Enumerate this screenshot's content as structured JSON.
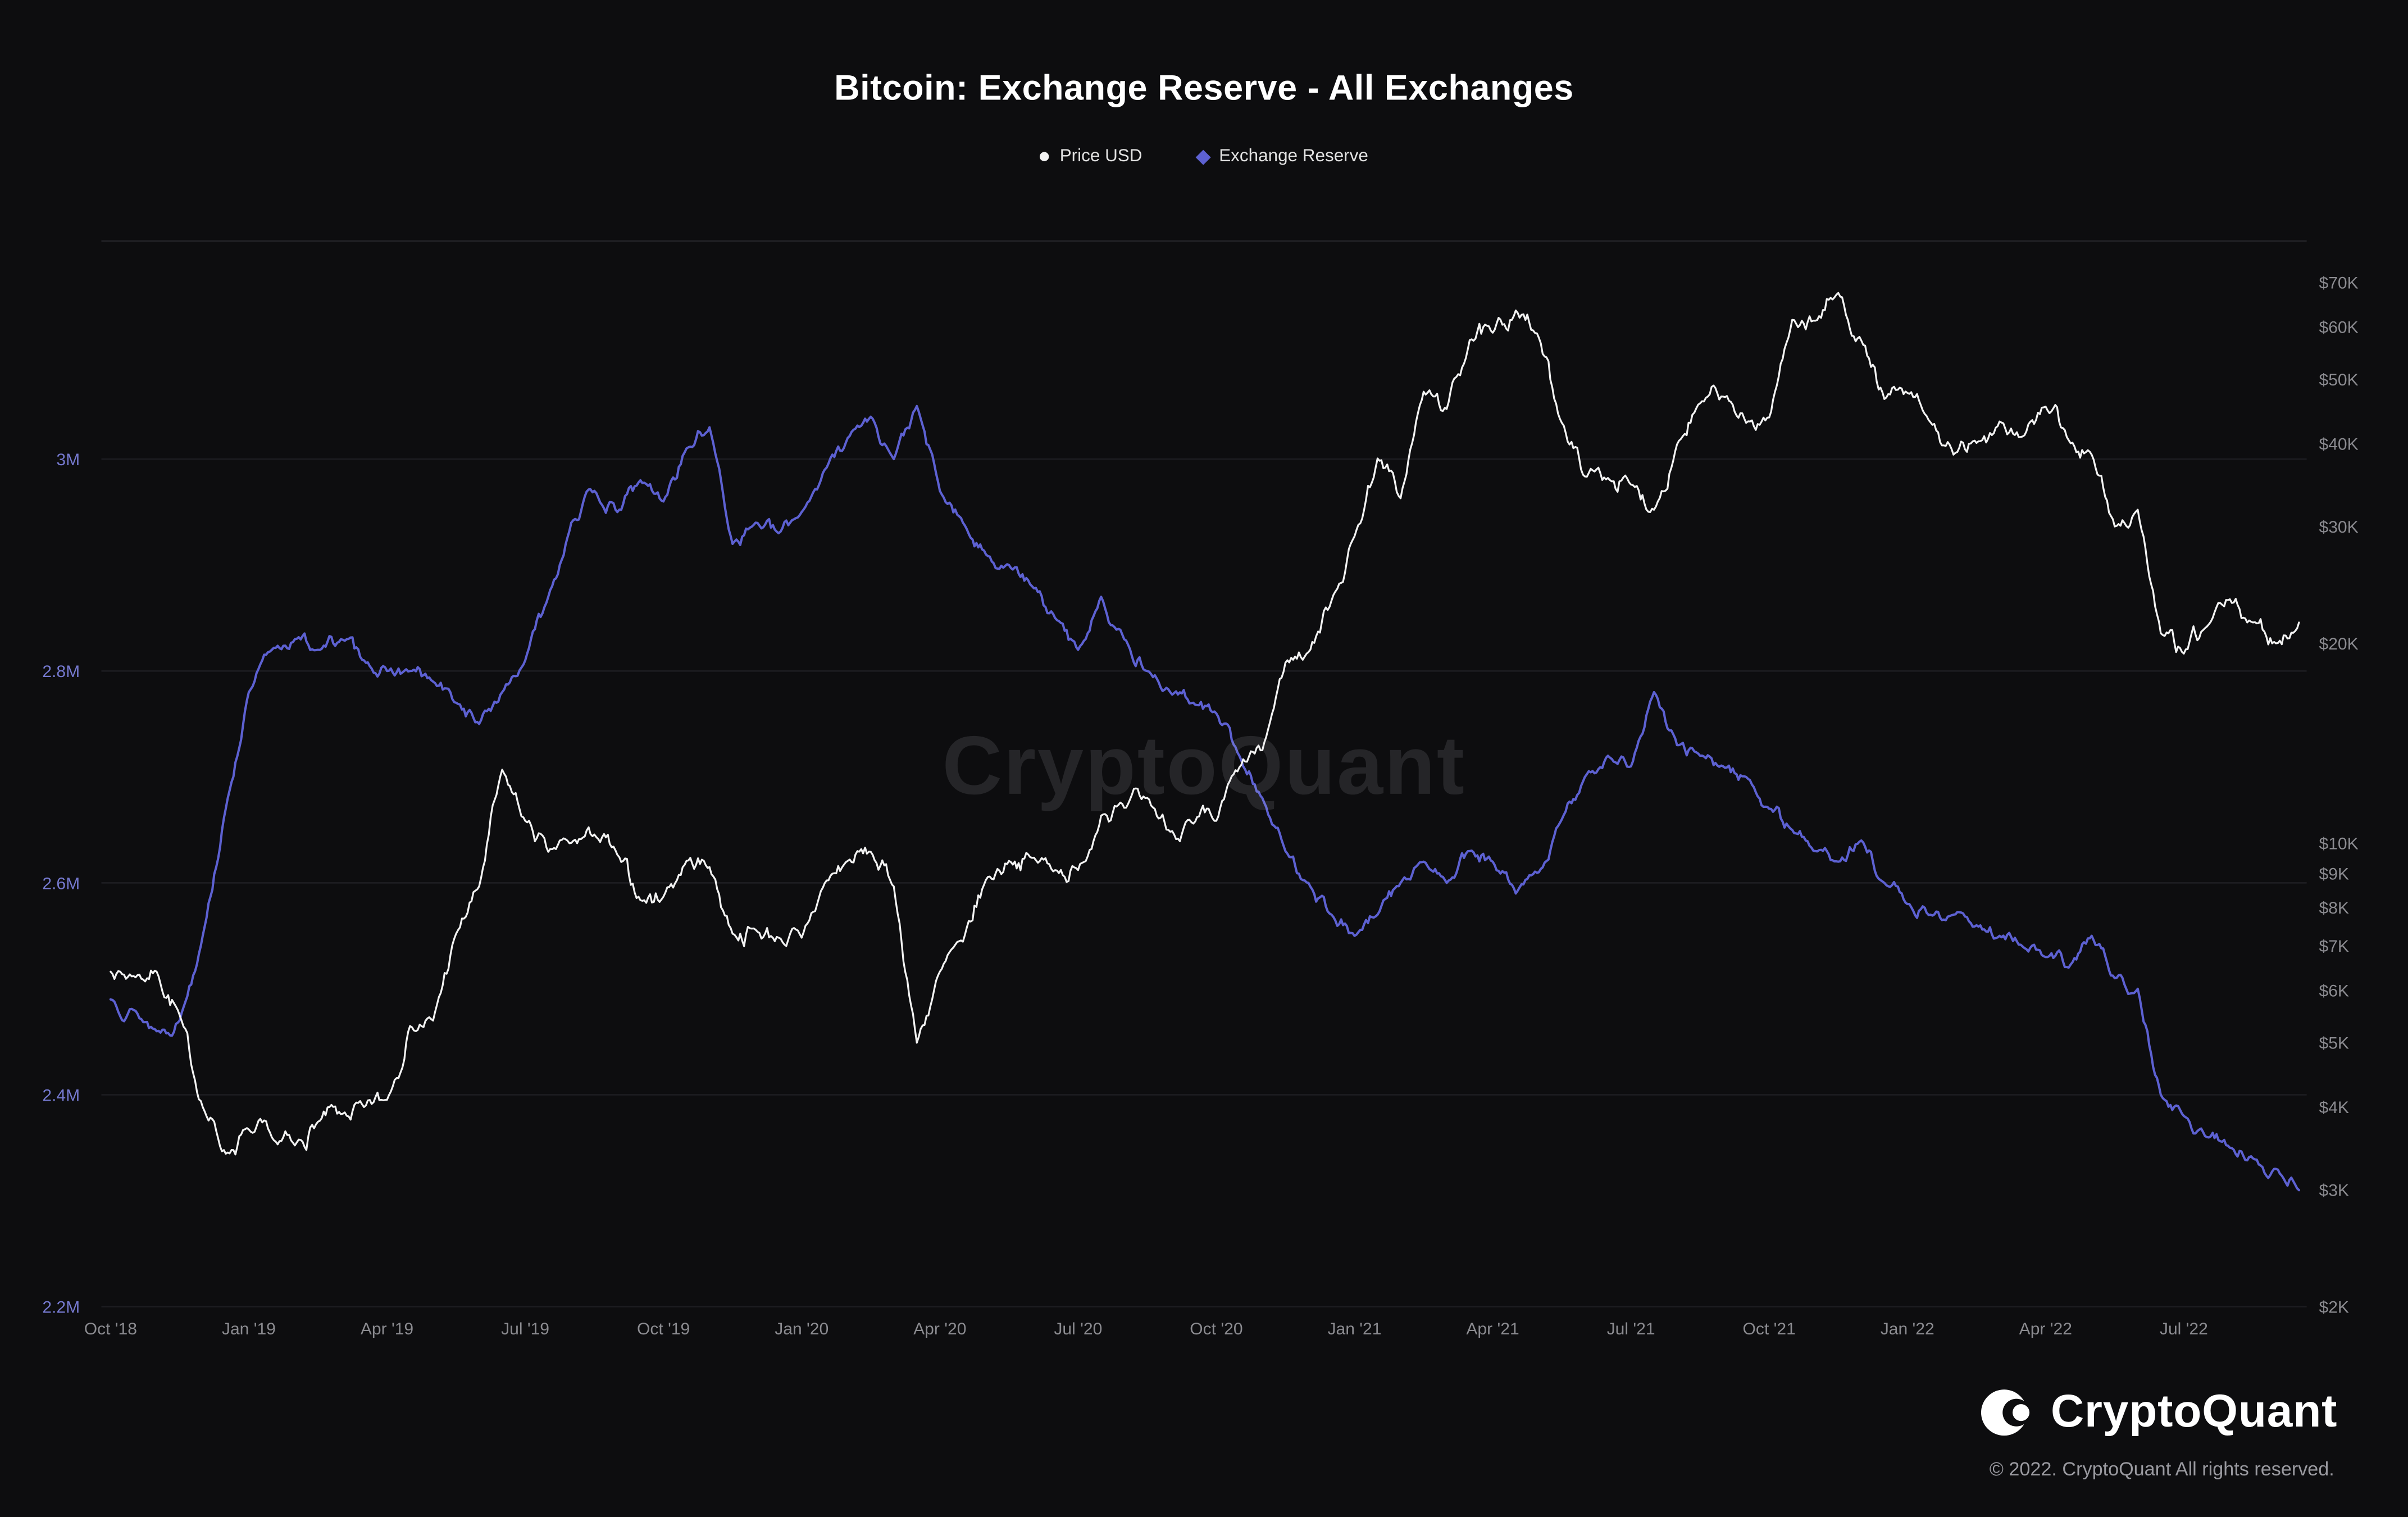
{
  "chart_data": {
    "type": "line",
    "title": "Bitcoin: Exchange Reserve - All Exchanges",
    "x_unit": "months since Oct 2018",
    "x": {
      "start": 0,
      "step": 0.5,
      "count": 96
    },
    "x_ticks": [
      {
        "label": "Oct '18",
        "m": 0
      },
      {
        "label": "Jan '19",
        "m": 3
      },
      {
        "label": "Apr '19",
        "m": 6
      },
      {
        "label": "Jul '19",
        "m": 9
      },
      {
        "label": "Oct '19",
        "m": 12
      },
      {
        "label": "Jan '20",
        "m": 15
      },
      {
        "label": "Apr '20",
        "m": 18
      },
      {
        "label": "Jul '20",
        "m": 21
      },
      {
        "label": "Oct '20",
        "m": 24
      },
      {
        "label": "Jan '21",
        "m": 27
      },
      {
        "label": "Apr '21",
        "m": 30
      },
      {
        "label": "Jul '21",
        "m": 33
      },
      {
        "label": "Oct '21",
        "m": 36
      },
      {
        "label": "Jan '22",
        "m": 39
      },
      {
        "label": "Apr '22",
        "m": 42
      },
      {
        "label": "Jul '22",
        "m": 45
      }
    ],
    "left_axis": {
      "name": "Exchange Reserve (BTC)",
      "scale": "linear",
      "range_millions": [
        2.2,
        3.08
      ],
      "ticks": [
        {
          "label": "3M",
          "value": 3.0
        },
        {
          "label": "2.8M",
          "value": 2.8
        },
        {
          "label": "2.6M",
          "value": 2.6
        },
        {
          "label": "2.4M",
          "value": 2.4
        },
        {
          "label": "2.2M",
          "value": 2.2
        }
      ],
      "label_color": "#7579cf"
    },
    "right_axis": {
      "name": "Price USD",
      "scale": "log",
      "range_thousands": [
        2,
        70
      ],
      "ticks": [
        {
          "label": "$70K",
          "value": 70
        },
        {
          "label": "$60K",
          "value": 60
        },
        {
          "label": "$50K",
          "value": 50
        },
        {
          "label": "$40K",
          "value": 40
        },
        {
          "label": "$30K",
          "value": 30
        },
        {
          "label": "$20K",
          "value": 20
        },
        {
          "label": "$10K",
          "value": 10
        },
        {
          "label": "$9K",
          "value": 9
        },
        {
          "label": "$8K",
          "value": 8
        },
        {
          "label": "$7K",
          "value": 7
        },
        {
          "label": "$6K",
          "value": 6
        },
        {
          "label": "$5K",
          "value": 5
        },
        {
          "label": "$4K",
          "value": 4
        },
        {
          "label": "$3K",
          "value": 3
        },
        {
          "label": "$2K",
          "value": 2
        }
      ],
      "label_color": "#8b8b90"
    },
    "grid": "horizontal",
    "legend_position": "top",
    "series": [
      {
        "name": "Price USD",
        "axis": "right",
        "marker": "dot",
        "color": "#f2f2f2",
        "unit": "USD thousands",
        "values": [
          6.4,
          6.3,
          6.4,
          5.5,
          4.0,
          3.4,
          3.7,
          3.6,
          3.5,
          3.8,
          3.9,
          4.0,
          4.1,
          5.3,
          5.4,
          7.3,
          8.6,
          12.9,
          10.8,
          9.7,
          10.0,
          10.3,
          9.6,
          8.2,
          8.3,
          9.4,
          9.2,
          7.3,
          7.4,
          7.2,
          7.2,
          8.7,
          9.4,
          9.7,
          8.6,
          5.0,
          6.4,
          7.1,
          8.8,
          9.4,
          9.5,
          9.1,
          9.1,
          11.0,
          11.3,
          11.7,
          10.4,
          10.7,
          10.8,
          13.0,
          13.8,
          18.7,
          19.4,
          23.2,
          29.0,
          38.0,
          33.1,
          47.9,
          45.1,
          57.3,
          58.8,
          63.5,
          57.8,
          43.0,
          35.7,
          35.5,
          34.7,
          31.8,
          39.9,
          46.0,
          47.1,
          43.0,
          43.8,
          61.5,
          61.3,
          67.5,
          57.2,
          46.7,
          47.7,
          43.1,
          38.5,
          40.1,
          43.2,
          41.0,
          45.5,
          40.5,
          38.5,
          30.0,
          31.8,
          20.7,
          19.3,
          21.2,
          23.3,
          21.5,
          20.0,
          21.5
        ]
      },
      {
        "name": "Exchange Reserve",
        "axis": "left",
        "marker": "diamond",
        "color": "#5d61d2",
        "unit": "BTC millions",
        "values": [
          2.49,
          2.48,
          2.46,
          2.47,
          2.55,
          2.67,
          2.78,
          2.82,
          2.83,
          2.82,
          2.83,
          2.81,
          2.8,
          2.8,
          2.79,
          2.77,
          2.75,
          2.78,
          2.81,
          2.87,
          2.94,
          2.97,
          2.95,
          2.98,
          2.96,
          3.01,
          3.03,
          2.92,
          2.94,
          2.93,
          2.95,
          2.99,
          3.02,
          3.04,
          3.0,
          3.05,
          2.97,
          2.94,
          2.91,
          2.9,
          2.88,
          2.85,
          2.82,
          2.87,
          2.83,
          2.8,
          2.78,
          2.77,
          2.76,
          2.72,
          2.68,
          2.63,
          2.6,
          2.57,
          2.55,
          2.57,
          2.6,
          2.62,
          2.6,
          2.63,
          2.62,
          2.59,
          2.61,
          2.66,
          2.7,
          2.72,
          2.71,
          2.78,
          2.73,
          2.72,
          2.71,
          2.7,
          2.67,
          2.65,
          2.63,
          2.62,
          2.64,
          2.6,
          2.58,
          2.57,
          2.57,
          2.56,
          2.55,
          2.54,
          2.53,
          2.52,
          2.55,
          2.51,
          2.5,
          2.4,
          2.38,
          2.36,
          2.35,
          2.34,
          2.33,
          2.31
        ]
      }
    ]
  },
  "watermark": {
    "text": "CryptoQuant"
  },
  "brand": {
    "name": "CryptoQuant",
    "copyright": "© 2022. CryptoQuant All rights reserved."
  }
}
